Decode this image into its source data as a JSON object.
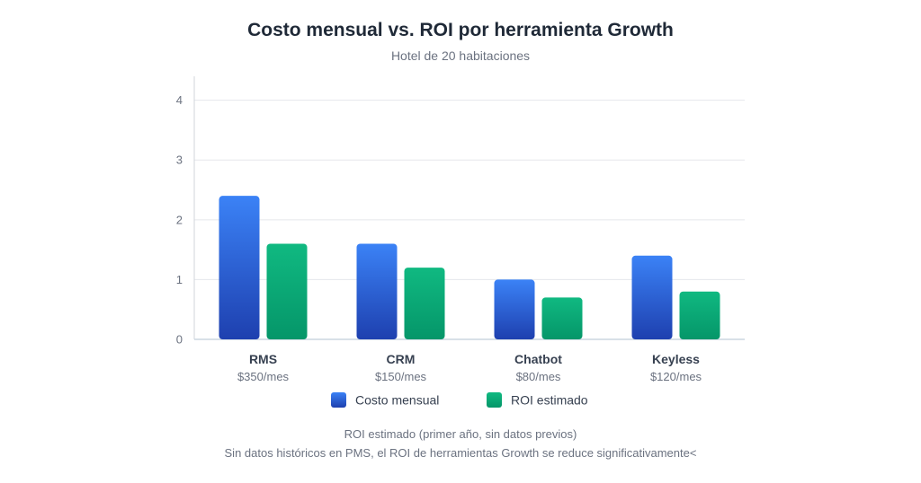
{
  "chart_data": {
    "type": "bar",
    "title": "Costo mensual vs. ROI por herramienta Growth",
    "subtitle": "Hotel de 20 habitaciones",
    "categories": [
      "RMS",
      "CRM",
      "Chatbot",
      "Keyless"
    ],
    "category_sublabels": [
      "$350/mes",
      "$150/mes",
      "$80/mes",
      "$120/mes"
    ],
    "series": [
      {
        "name": "Costo mensual",
        "values": [
          2.4,
          1.6,
          1.0,
          1.4
        ],
        "color_top": "#3b82f6",
        "color_bottom": "#1e40af"
      },
      {
        "name": "ROI estimado",
        "values": [
          1.6,
          1.2,
          0.7,
          0.8
        ],
        "color_top": "#10b981",
        "color_bottom": "#059669"
      }
    ],
    "yticks": [
      "0",
      "1",
      "2",
      "3",
      "4"
    ],
    "ylim": [
      0,
      4.4
    ],
    "xlabel": "",
    "ylabel": "",
    "grid": true,
    "legend_position": "bottom"
  },
  "footnotes": [
    "ROI estimado (primer año, sin datos previos)",
    "Sin datos históricos en PMS, el ROI de herramientas Growth se reduce significativamente<"
  ]
}
